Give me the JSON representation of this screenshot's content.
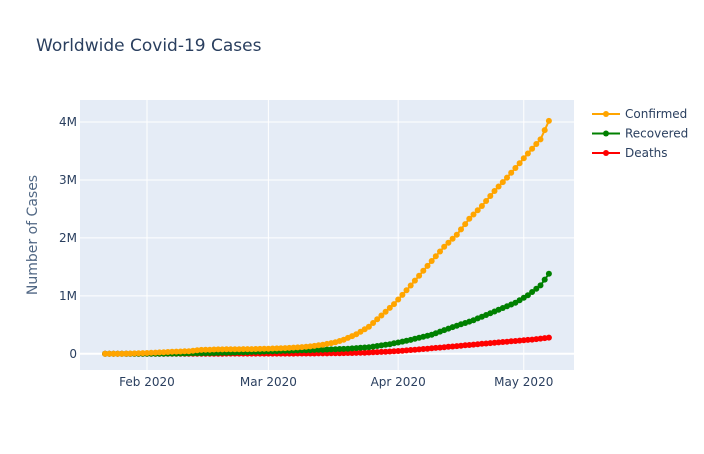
{
  "chart_data": {
    "type": "line",
    "title": "Worldwide Covid-19 Cases",
    "xlabel": "",
    "ylabel": "Number of Cases",
    "x_start": "2020-01-22",
    "x_end": "2020-05-07",
    "x_ticks": [
      {
        "date": "2020-02-01",
        "label": "Feb 2020"
      },
      {
        "date": "2020-03-01",
        "label": "Mar 2020"
      },
      {
        "date": "2020-04-01",
        "label": "Apr 2020"
      },
      {
        "date": "2020-05-01",
        "label": "May 2020"
      }
    ],
    "y_ticks": [
      {
        "value": 0,
        "label": "0"
      },
      {
        "value": 1000000,
        "label": "1M"
      },
      {
        "value": 2000000,
        "label": "2M"
      },
      {
        "value": 3000000,
        "label": "3M"
      },
      {
        "value": 4000000,
        "label": "4M"
      }
    ],
    "ylim": [
      -280000,
      4380000
    ],
    "xlim": [
      "2020-01-16",
      "2020-05-13"
    ],
    "grid": true,
    "legend_position": "top-right",
    "series": [
      {
        "name": "Confirmed",
        "color": "#FFA500",
        "keypoints": [
          [
            "2020-01-22",
            555
          ],
          [
            "2020-01-26",
            2100
          ],
          [
            "2020-01-30",
            8200
          ],
          [
            "2020-02-03",
            20000
          ],
          [
            "2020-02-07",
            34400
          ],
          [
            "2020-02-11",
            45200
          ],
          [
            "2020-02-14",
            66900
          ],
          [
            "2020-02-18",
            75200
          ],
          [
            "2020-02-22",
            78600
          ],
          [
            "2020-02-26",
            81400
          ],
          [
            "2020-03-01",
            88400
          ],
          [
            "2020-03-05",
            98000
          ],
          [
            "2020-03-08",
            110000
          ],
          [
            "2020-03-11",
            126700
          ],
          [
            "2020-03-14",
            156700
          ],
          [
            "2020-03-17",
            198000
          ],
          [
            "2020-03-19",
            242700
          ],
          [
            "2020-03-22",
            336000
          ],
          [
            "2020-03-25",
            467000
          ],
          [
            "2020-03-28",
            660000
          ],
          [
            "2020-03-31",
            857000
          ],
          [
            "2020-04-03",
            1095000
          ],
          [
            "2020-04-06",
            1346000
          ],
          [
            "2020-04-09",
            1602000
          ],
          [
            "2020-04-12",
            1846000
          ],
          [
            "2020-04-15",
            2056000
          ],
          [
            "2020-04-18",
            2330000
          ],
          [
            "2020-04-21",
            2550000
          ],
          [
            "2020-04-24",
            2810000
          ],
          [
            "2020-04-27",
            3040000
          ],
          [
            "2020-04-30",
            3290000
          ],
          [
            "2020-05-03",
            3540000
          ],
          [
            "2020-05-05",
            3700000
          ],
          [
            "2020-05-07",
            4020000
          ]
        ]
      },
      {
        "name": "Recovered",
        "color": "#008000",
        "keypoints": [
          [
            "2020-01-22",
            28
          ],
          [
            "2020-01-30",
            143
          ],
          [
            "2020-02-07",
            2600
          ],
          [
            "2020-02-14",
            9400
          ],
          [
            "2020-02-21",
            20000
          ],
          [
            "2020-02-28",
            36700
          ],
          [
            "2020-03-06",
            53800
          ],
          [
            "2020-03-13",
            68300
          ],
          [
            "2020-03-20",
            87000
          ],
          [
            "2020-03-25",
            114000
          ],
          [
            "2020-03-30",
            165000
          ],
          [
            "2020-04-04",
            240000
          ],
          [
            "2020-04-09",
            330000
          ],
          [
            "2020-04-14",
            460000
          ],
          [
            "2020-04-19",
            580000
          ],
          [
            "2020-04-24",
            730000
          ],
          [
            "2020-04-29",
            880000
          ],
          [
            "2020-05-02",
            1010000
          ],
          [
            "2020-05-05",
            1180000
          ],
          [
            "2020-05-07",
            1380000
          ]
        ]
      },
      {
        "name": "Deaths",
        "color": "#FF0000",
        "keypoints": [
          [
            "2020-01-22",
            17
          ],
          [
            "2020-02-01",
            259
          ],
          [
            "2020-02-10",
            1000
          ],
          [
            "2020-02-20",
            2250
          ],
          [
            "2020-03-01",
            3000
          ],
          [
            "2020-03-10",
            4260
          ],
          [
            "2020-03-17",
            7900
          ],
          [
            "2020-03-24",
            18900
          ],
          [
            "2020-03-31",
            42000
          ],
          [
            "2020-04-07",
            82000
          ],
          [
            "2020-04-14",
            126000
          ],
          [
            "2020-04-21",
            172000
          ],
          [
            "2020-04-28",
            215000
          ],
          [
            "2020-05-03",
            245000
          ],
          [
            "2020-05-07",
            280000
          ]
        ]
      }
    ]
  }
}
